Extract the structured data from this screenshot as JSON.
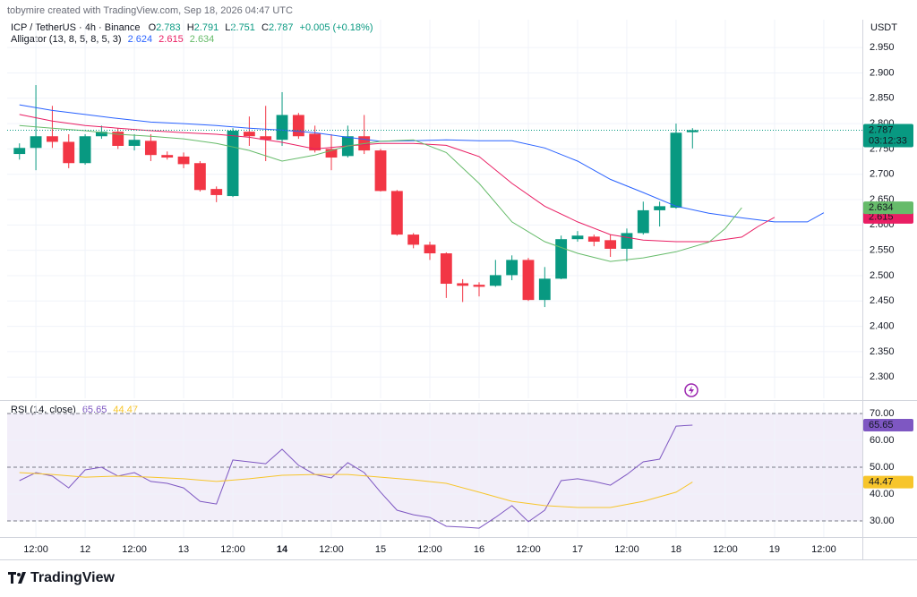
{
  "header": {
    "credit": "tobymire created with TradingView.com, Sep 18, 2026 04:47 UTC"
  },
  "footer": {
    "logo": "TradingView"
  },
  "chart_data": [
    {
      "type": "candlestick",
      "symbol": "ICP / TetherUS · 4h · Binance",
      "ohlc_letters": [
        "O",
        "H",
        "L",
        "C"
      ],
      "change": "+0.005 (+0.18%)",
      "indicator": "Alligator (13, 8, 5, 8, 5, 3)",
      "currency": "USDT",
      "countdown": "03:12:33",
      "x": [
        0,
        1,
        2,
        3,
        4,
        5,
        6,
        7,
        8,
        9,
        10,
        11,
        12,
        13,
        14,
        15,
        16,
        17,
        18,
        19,
        20,
        21,
        22,
        23,
        24,
        25,
        26,
        27,
        28,
        29,
        30,
        31,
        32,
        33,
        34,
        35,
        36,
        37,
        38,
        39,
        40,
        41
      ],
      "open": [
        2.74,
        2.752,
        2.775,
        2.764,
        2.722,
        2.775,
        2.784,
        2.756,
        2.766,
        2.738,
        2.735,
        2.722,
        2.671,
        2.657,
        2.784,
        2.775,
        2.768,
        2.817,
        2.78,
        2.75,
        2.736,
        2.775,
        2.747,
        2.667,
        2.581,
        2.561,
        2.544,
        2.485,
        2.482,
        2.48,
        2.501,
        2.531,
        2.452,
        2.494,
        2.572,
        2.577,
        2.57,
        2.553,
        2.584,
        2.629,
        2.634,
        2.783
      ],
      "high": [
        2.761,
        2.876,
        2.835,
        2.779,
        2.779,
        2.796,
        2.791,
        2.779,
        2.779,
        2.745,
        2.743,
        2.726,
        2.676,
        2.791,
        2.814,
        2.835,
        2.862,
        2.821,
        2.796,
        2.779,
        2.796,
        2.817,
        2.75,
        2.669,
        2.584,
        2.567,
        2.546,
        2.493,
        2.487,
        2.531,
        2.54,
        2.535,
        2.517,
        2.579,
        2.588,
        2.581,
        2.581,
        2.593,
        2.646,
        2.646,
        2.8,
        2.791
      ],
      "low": [
        2.729,
        2.708,
        2.752,
        2.712,
        2.719,
        2.77,
        2.75,
        2.747,
        2.726,
        2.729,
        2.712,
        2.666,
        2.645,
        2.655,
        2.756,
        2.726,
        2.756,
        2.77,
        2.743,
        2.708,
        2.733,
        2.74,
        2.666,
        2.579,
        2.554,
        2.531,
        2.456,
        2.448,
        2.459,
        2.478,
        2.491,
        2.45,
        2.438,
        2.493,
        2.567,
        2.558,
        2.537,
        2.528,
        2.581,
        2.597,
        2.632,
        2.751
      ],
      "close": [
        2.752,
        2.775,
        2.764,
        2.722,
        2.775,
        2.784,
        2.756,
        2.768,
        2.738,
        2.733,
        2.72,
        2.669,
        2.659,
        2.786,
        2.775,
        2.768,
        2.817,
        2.775,
        2.747,
        2.733,
        2.775,
        2.747,
        2.667,
        2.581,
        2.561,
        2.544,
        2.484,
        2.48,
        2.478,
        2.501,
        2.531,
        2.452,
        2.494,
        2.572,
        2.579,
        2.567,
        2.553,
        2.584,
        2.629,
        2.637,
        2.782,
        2.787
      ],
      "up_color": "#089981",
      "down_color": "#f23645",
      "series": [
        {
          "color": "#2962ff",
          "x": [
            0,
            2,
            4,
            6,
            8,
            10,
            12,
            14,
            16,
            18,
            20,
            22,
            24,
            26,
            28,
            30,
            32,
            34,
            36,
            38,
            40,
            42,
            44,
            46,
            48,
            49
          ],
          "values": [
            2.837,
            2.826,
            2.818,
            2.81,
            2.803,
            2.8,
            2.796,
            2.791,
            2.787,
            2.782,
            2.773,
            2.765,
            2.766,
            2.768,
            2.766,
            2.766,
            2.752,
            2.726,
            2.69,
            2.664,
            2.637,
            2.623,
            2.614,
            2.606,
            2.606,
            2.624
          ]
        },
        {
          "color": "#e91e63",
          "x": [
            0,
            2,
            4,
            6,
            8,
            10,
            12,
            14,
            16,
            18,
            20,
            22,
            24,
            26,
            28,
            30,
            32,
            34,
            36,
            38,
            40,
            42,
            44,
            45,
            46
          ],
          "values": [
            2.818,
            2.805,
            2.796,
            2.791,
            2.786,
            2.782,
            2.779,
            2.773,
            2.763,
            2.75,
            2.756,
            2.761,
            2.761,
            2.757,
            2.735,
            2.682,
            2.637,
            2.606,
            2.581,
            2.57,
            2.567,
            2.567,
            2.576,
            2.597,
            2.615
          ]
        },
        {
          "color": "#66bb6a",
          "x": [
            0,
            2,
            4,
            6,
            8,
            10,
            12,
            14,
            16,
            18,
            20,
            22,
            24,
            26,
            28,
            30,
            32,
            34,
            36,
            38,
            40,
            42,
            43,
            44
          ],
          "values": [
            2.796,
            2.791,
            2.786,
            2.779,
            2.775,
            2.77,
            2.761,
            2.747,
            2.726,
            2.738,
            2.756,
            2.765,
            2.768,
            2.743,
            2.682,
            2.606,
            2.567,
            2.544,
            2.528,
            2.535,
            2.547,
            2.566,
            2.593,
            2.634
          ]
        }
      ],
      "xlim": [
        -0.75,
        51.35
      ],
      "ylim": [
        2.258,
        3.005
      ],
      "xticks": [
        {
          "value": 1,
          "label": "12:00"
        },
        {
          "value": 4,
          "label": "12"
        },
        {
          "value": 7,
          "label": "12:00"
        },
        {
          "value": 10,
          "label": "13"
        },
        {
          "value": 13,
          "label": "12:00"
        },
        {
          "value": 16,
          "label": "14"
        },
        {
          "value": 19,
          "label": "12:00"
        },
        {
          "value": 22,
          "label": "15"
        },
        {
          "value": 25,
          "label": "12:00"
        },
        {
          "value": 28,
          "label": "16"
        },
        {
          "value": 31,
          "label": "12:00"
        },
        {
          "value": 34,
          "label": "17"
        },
        {
          "value": 37,
          "label": "12:00"
        },
        {
          "value": 40,
          "label": "18"
        },
        {
          "value": 43,
          "label": "12:00"
        },
        {
          "value": 46,
          "label": "19"
        },
        {
          "value": 49,
          "label": "12:00"
        }
      ],
      "yticks": [
        {
          "value": 2.3,
          "label": "2.300"
        },
        {
          "value": 2.35,
          "label": "2.350"
        },
        {
          "value": 2.4,
          "label": "2.400"
        },
        {
          "value": 2.45,
          "label": "2.450"
        },
        {
          "value": 2.5,
          "label": "2.500"
        },
        {
          "value": 2.55,
          "label": "2.550"
        },
        {
          "value": 2.6,
          "label": "2.600"
        },
        {
          "value": 2.65,
          "label": "2.650"
        },
        {
          "value": 2.7,
          "label": "2.700"
        },
        {
          "value": 2.75,
          "label": "2.750"
        },
        {
          "value": 2.8,
          "label": "2.800"
        },
        {
          "value": 2.85,
          "label": "2.850"
        },
        {
          "value": 2.9,
          "label": "2.900"
        },
        {
          "value": 2.95,
          "label": "2.950"
        }
      ],
      "grid": true
    },
    {
      "type": "line",
      "title": "RSI (14, close)",
      "series": [
        {
          "color": "#7e57c2",
          "x": [
            0,
            1,
            2,
            3,
            4,
            5,
            6,
            7,
            8,
            9,
            10,
            11,
            12,
            13,
            14,
            15,
            16,
            17,
            18,
            19,
            20,
            21,
            22,
            23,
            24,
            25,
            26,
            27,
            28,
            29,
            30,
            31,
            32,
            33,
            34,
            35,
            36,
            37,
            38,
            39,
            40,
            41
          ],
          "values": [
            45.0,
            48.0,
            46.7,
            42.3,
            49.0,
            50.0,
            46.7,
            48.0,
            44.7,
            44.0,
            42.3,
            37.3,
            36.3,
            52.7,
            52.0,
            51.3,
            56.7,
            50.7,
            47.3,
            46.0,
            51.7,
            48.0,
            40.7,
            34.0,
            32.3,
            31.3,
            28.0,
            27.7,
            27.3,
            31.3,
            35.7,
            29.7,
            34.0,
            45.0,
            45.7,
            44.7,
            43.3,
            47.3,
            52.0,
            53.0,
            65.3,
            65.65
          ]
        },
        {
          "color": "#f7c52b",
          "x": [
            0,
            2,
            4,
            6,
            8,
            10,
            12,
            14,
            16,
            18,
            20,
            22,
            24,
            26,
            28,
            30,
            32,
            34,
            36,
            38,
            40,
            41
          ],
          "values": [
            48.0,
            47.3,
            46.3,
            46.7,
            46.3,
            45.7,
            44.7,
            45.7,
            47.0,
            47.3,
            47.3,
            46.3,
            45.3,
            44.0,
            40.7,
            37.3,
            35.7,
            35.0,
            35.0,
            37.3,
            40.7,
            44.47
          ]
        }
      ],
      "xlim": [
        -0.75,
        51.35
      ],
      "ylim": [
        24,
        74
      ],
      "yticks": [
        {
          "value": 30,
          "label": "30.00"
        },
        {
          "value": 40,
          "label": "40.00"
        },
        {
          "value": 50,
          "label": "50.00"
        },
        {
          "value": 60,
          "label": "60.00"
        },
        {
          "value": 70,
          "label": "70.00"
        }
      ],
      "bands": [
        30,
        50,
        70
      ],
      "band_fill": "#7e57c2",
      "grid": true
    }
  ]
}
